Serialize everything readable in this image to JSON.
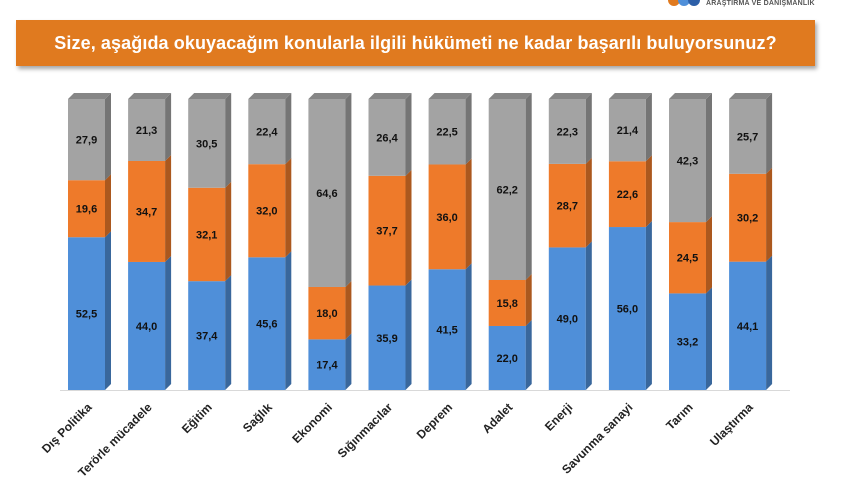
{
  "header": {
    "logo_text": "ARAŞTIRMA VE DANIŞMANLIK"
  },
  "colors": {
    "banner": "#e07a1f",
    "blue": "#4f8fd9",
    "orange": "#ee7a2a",
    "gray": "#a3a3a3"
  },
  "chart_data": {
    "type": "bar",
    "stacked": true,
    "title": "Size, aşağıda okuyacağım konularla ilgili hükümeti ne kadar başarılı buluyorsunuz?",
    "categories": [
      "Dış Politika",
      "Terörle mücadele",
      "Eğitim",
      "Sağlık",
      "Ekonomi",
      "Sığınmacılar",
      "Deprem",
      "Adalet",
      "Enerji",
      "Savunma sanayi",
      "Tarım",
      "Ulaştırma"
    ],
    "series": [
      {
        "name": "blue",
        "color": "#4f8fd9",
        "values": [
          52.5,
          44.0,
          37.4,
          45.6,
          17.4,
          35.9,
          41.5,
          22.0,
          49.0,
          56.0,
          33.2,
          44.1
        ]
      },
      {
        "name": "orange",
        "color": "#ee7a2a",
        "values": [
          19.6,
          34.7,
          32.1,
          32.0,
          18.0,
          37.7,
          36.0,
          15.8,
          28.7,
          22.6,
          24.5,
          30.2
        ]
      },
      {
        "name": "gray",
        "color": "#a3a3a3",
        "values": [
          27.9,
          21.3,
          30.5,
          22.4,
          64.6,
          26.4,
          22.5,
          62.2,
          22.3,
          21.4,
          42.3,
          25.7
        ]
      }
    ],
    "value_labels": [
      [
        "52,5",
        "44,0",
        "37,4",
        "45,6",
        "17,4",
        "35,9",
        "41,5",
        "22,0",
        "49,0",
        "56,0",
        "33,2",
        "44,1"
      ],
      [
        "19,6",
        "34,7",
        "32,1",
        "32,0",
        "18,0",
        "37,7",
        "36,0",
        "15,8",
        "28,7",
        "22,6",
        "24,5",
        "30,2"
      ],
      [
        "27,9",
        "21,3",
        "30,5",
        "22,4",
        "64,6",
        "26,4",
        "22,5",
        "62,2",
        "22,3",
        "21,4",
        "42,3",
        "25,7"
      ]
    ],
    "ylim": [
      0,
      100
    ],
    "grid": false,
    "legend": "none",
    "xlabel": "",
    "ylabel": ""
  }
}
